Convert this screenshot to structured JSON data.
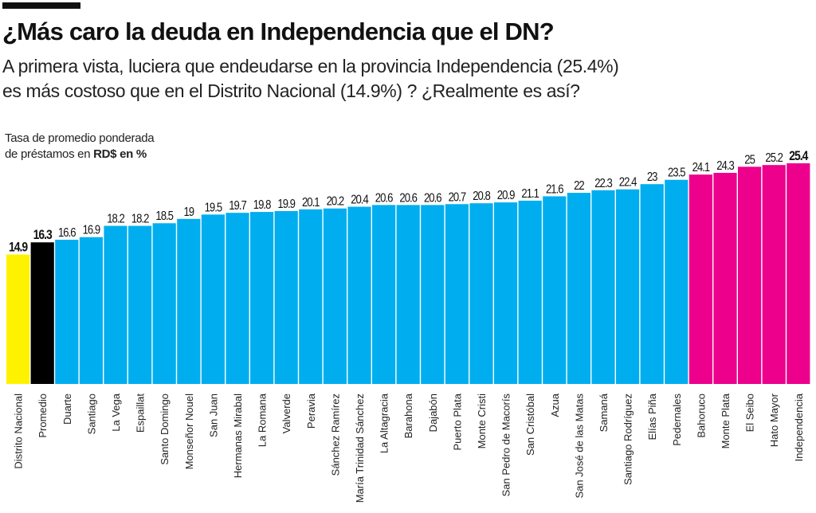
{
  "header": {
    "title": "¿Más caro la deuda en Independencia que el DN?",
    "subtitle_line1": "A primera vista, luciera que endeudarse en la provincia Independencia (25.4%)",
    "subtitle_line2": "es más costoso que en el Distrito Nacional (14.9%) ? ¿Realmente es así?"
  },
  "chart_data": {
    "type": "bar",
    "ylabel_part1": "Tasa de promedio ponderada",
    "ylabel_part2": "de préstamos en ",
    "ylabel_bold": "RD$ en %",
    "ylim": [
      0,
      25.4
    ],
    "grid": false,
    "categories": [
      "Distrito Nacional",
      "Promedio",
      "Duarte",
      "Santiago",
      "La Vega",
      "Espaillat",
      "Santo Domingo",
      "Monseñor Nouel",
      "San Juan",
      "Hermanas Mirabal",
      "La Romana",
      "Valverde",
      "Peravia",
      "Sánchez Ramírez",
      "María Trinidad Sánchez",
      "La Altagracia",
      "Barahona",
      "Dajabón",
      "Puerto Plata",
      "Monte Cristi",
      "San Pedro de Macorís",
      "San Cristóbal",
      "Azua",
      "San José de las Matas",
      "Samaná",
      "Santiago Rodríguez",
      "Elías Piña",
      "Pedernales",
      "Bahoruco",
      "Monte Plata",
      "El Seibo",
      "Hato Mayor",
      "Independencia"
    ],
    "values": [
      14.9,
      16.3,
      16.6,
      16.9,
      18.2,
      18.2,
      18.5,
      19,
      19.5,
      19.7,
      19.8,
      19.9,
      20.1,
      20.2,
      20.4,
      20.6,
      20.6,
      20.6,
      20.7,
      20.8,
      20.9,
      21.1,
      21.6,
      22,
      22.3,
      22.4,
      23,
      23.5,
      24.1,
      24.3,
      25,
      25.2,
      25.4
    ],
    "bold_labels": [
      0,
      1,
      32
    ],
    "colors": {
      "distrito_nacional": "#fff200",
      "promedio": "#000000",
      "default": "#00aeef",
      "highest": "#ec008c"
    },
    "color_groups": [
      "distrito_nacional",
      "promedio",
      "default",
      "default",
      "default",
      "default",
      "default",
      "default",
      "default",
      "default",
      "default",
      "default",
      "default",
      "default",
      "default",
      "default",
      "default",
      "default",
      "default",
      "default",
      "default",
      "default",
      "default",
      "default",
      "default",
      "default",
      "default",
      "default",
      "highest",
      "highest",
      "highest",
      "highest",
      "highest"
    ]
  }
}
